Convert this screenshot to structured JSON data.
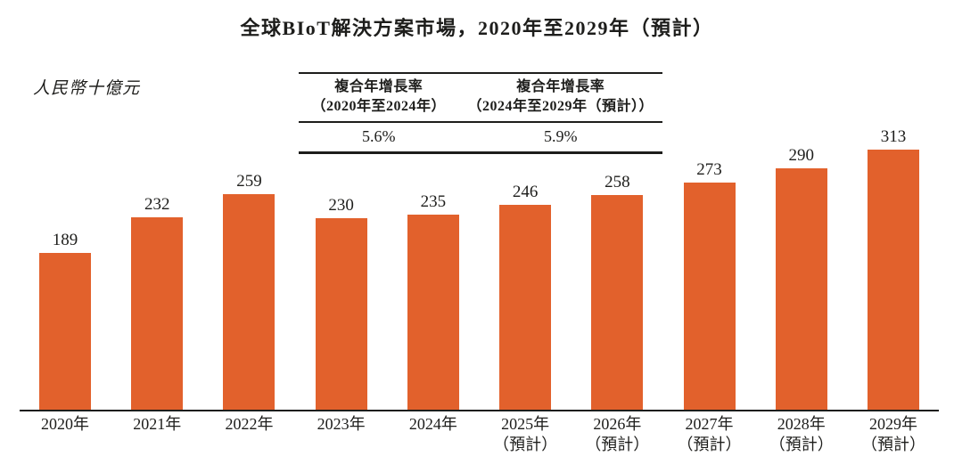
{
  "title": "全球BIoT解決方案市場，2020年至2029年（預計）",
  "unit_label": "人民幣十億元",
  "cagr_table": {
    "columns": [
      {
        "header_line1": "複合年增長率",
        "header_line2": "（2020年至2024年）",
        "value": "5.6%"
      },
      {
        "header_line1": "複合年增長率",
        "header_line2": "（2024年至2029年（預計））",
        "value": "5.9%"
      }
    ]
  },
  "x_axis": {
    "labels": [
      {
        "line1": "2020年",
        "line2": ""
      },
      {
        "line1": "2021年",
        "line2": ""
      },
      {
        "line1": "2022年",
        "line2": ""
      },
      {
        "line1": "2023年",
        "line2": ""
      },
      {
        "line1": "2024年",
        "line2": ""
      },
      {
        "line1": "2025年",
        "line2": "（預計）"
      },
      {
        "line1": "2026年",
        "line2": "（預計）"
      },
      {
        "line1": "2027年",
        "line2": "（預計）"
      },
      {
        "line1": "2028年",
        "line2": "（預計）"
      },
      {
        "line1": "2029年",
        "line2": "（預計）"
      }
    ]
  },
  "chart_data": {
    "type": "bar",
    "title": "全球BIoT解決方案市場，2020年至2029年（預計）",
    "ylabel": "人民幣十億元",
    "xlabel": "",
    "categories": [
      "2020年",
      "2021年",
      "2022年",
      "2023年",
      "2024年",
      "2025年（預計）",
      "2026年（預計）",
      "2027年（預計）",
      "2028年（預計）",
      "2029年（預計）"
    ],
    "values": [
      189,
      232,
      259,
      230,
      235,
      246,
      258,
      273,
      290,
      313
    ],
    "bar_color": "#E2612C",
    "text_color": "#1d1d1b",
    "ylim": [
      0,
      343
    ],
    "grid": false,
    "legend": "none",
    "annotations": [
      {
        "label": "複合年增長率（2020年至2024年）",
        "value": "5.6%"
      },
      {
        "label": "複合年增長率（2024年至2029年（預計））",
        "value": "5.9%"
      }
    ]
  }
}
